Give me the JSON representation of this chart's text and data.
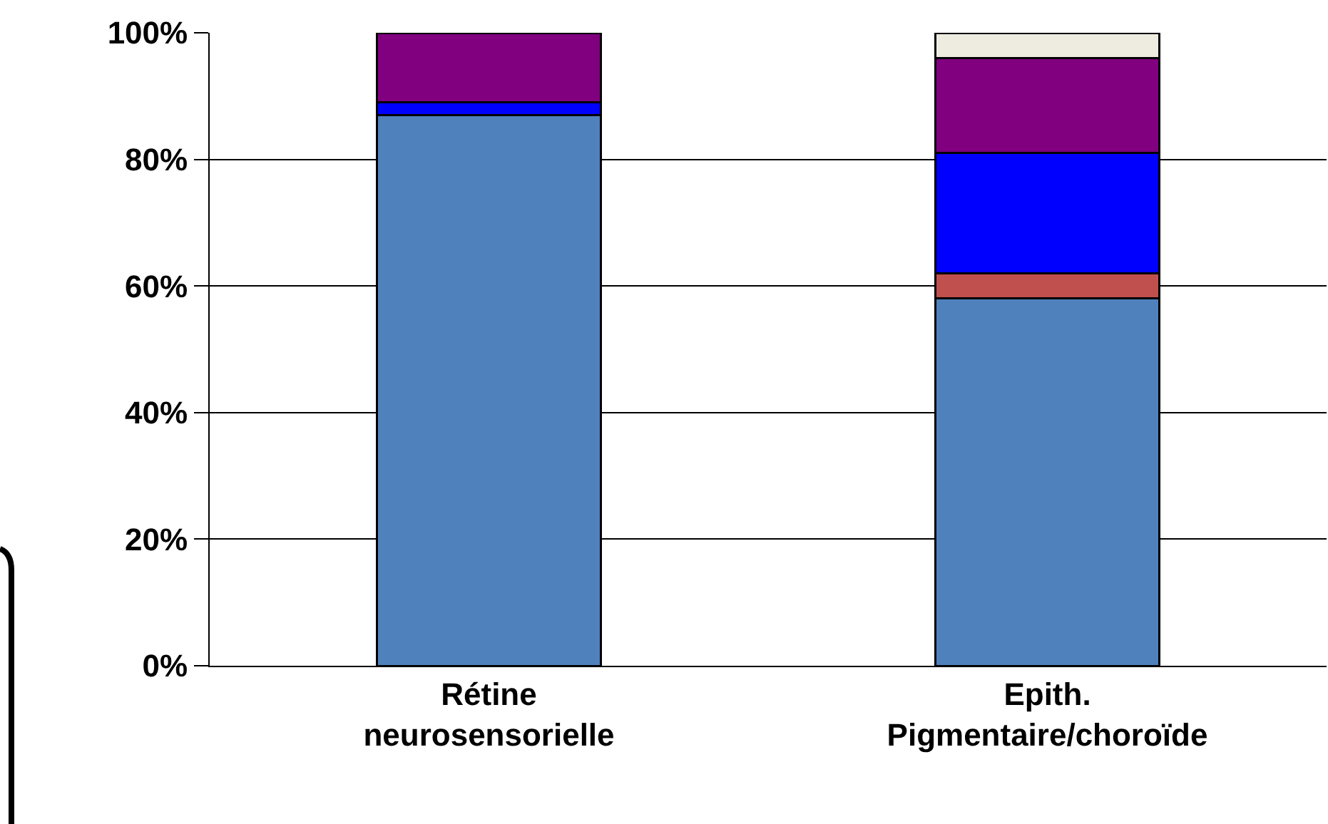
{
  "chart_data": {
    "type": "bar",
    "stacked": true,
    "categories": [
      "Rétine\nneurosensorielle",
      "Epith.\nPigmentaire/choroïde"
    ],
    "series": [
      {
        "color": "#4f81bd",
        "values": [
          87,
          58
        ]
      },
      {
        "color": "#c0504d",
        "values": [
          null,
          4
        ]
      },
      {
        "color": "#0000ff",
        "values": [
          2,
          19
        ]
      },
      {
        "color": "#800080",
        "values": [
          11,
          15
        ]
      },
      {
        "color": "#eeece1",
        "values": [
          null,
          4
        ]
      }
    ],
    "ylim": [
      0,
      100
    ],
    "yticks": [
      {
        "value": 0,
        "label": "0%"
      },
      {
        "value": 20,
        "label": "20%"
      },
      {
        "value": 40,
        "label": "40%"
      },
      {
        "value": 60,
        "label": "60%"
      },
      {
        "value": 80,
        "label": "80%"
      },
      {
        "value": 100,
        "label": "100%"
      }
    ],
    "grid": "y"
  }
}
